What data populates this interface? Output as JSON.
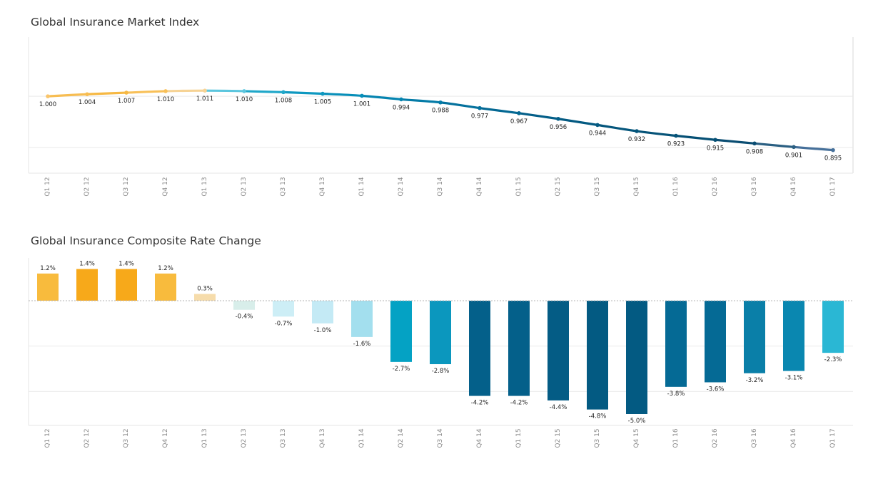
{
  "charts": {
    "line_title": "Global Insurance Market Index",
    "bar_title": "Global Insurance Composite Rate Change"
  },
  "chart_data": [
    {
      "type": "line",
      "title": "Global Insurance Market Index",
      "categories": [
        "Q1 12",
        "Q2 12",
        "Q3 12",
        "Q4 12",
        "Q1 13",
        "Q2 13",
        "Q3 13",
        "Q4 13",
        "Q1 14",
        "Q2 14",
        "Q3 14",
        "Q4 14",
        "Q1 15",
        "Q2 15",
        "Q3 15",
        "Q4 15",
        "Q1 16",
        "Q2 16",
        "Q3 16",
        "Q4 16",
        "Q1 17"
      ],
      "values": [
        1.0,
        1.004,
        1.007,
        1.01,
        1.011,
        1.01,
        1.008,
        1.005,
        1.001,
        0.994,
        0.988,
        0.977,
        0.967,
        0.956,
        0.944,
        0.932,
        0.923,
        0.915,
        0.908,
        0.901,
        0.895
      ],
      "labels": [
        "1.000",
        "1.004",
        "1.007",
        "1.010",
        "1.011",
        "1.010",
        "1.008",
        "1.005",
        "1.001",
        "0.994",
        "0.988",
        "0.977",
        "0.967",
        "0.956",
        "0.944",
        "0.932",
        "0.923",
        "0.915",
        "0.908",
        "0.901",
        "0.895"
      ],
      "ylim": [
        0.85,
        1.11
      ],
      "grid": true,
      "colors": [
        "#f9c56b",
        "#f7bd52",
        "#f6b843",
        "#f8c058",
        "#f6d395",
        "#5cc6de",
        "#1fa7c9",
        "#0e98c0",
        "#088fb9",
        "#0584b0",
        "#047ba7",
        "#04719d",
        "#046893",
        "#045f89",
        "#045a82",
        "#05567c",
        "#065378",
        "#065075",
        "#0a4d72",
        "#2a5f82",
        "#46709a"
      ]
    },
    {
      "type": "bar",
      "title": "Global Insurance Composite Rate Change",
      "categories": [
        "Q1 12",
        "Q2 12",
        "Q3 12",
        "Q4 12",
        "Q1 13",
        "Q2 13",
        "Q3 13",
        "Q4 13",
        "Q1 14",
        "Q2 14",
        "Q3 14",
        "Q4 14",
        "Q1 15",
        "Q2 15",
        "Q3 15",
        "Q4 15",
        "Q1 16",
        "Q2 16",
        "Q3 16",
        "Q4 16",
        "Q1 17"
      ],
      "values": [
        1.2,
        1.4,
        1.4,
        1.2,
        0.3,
        -0.4,
        -0.7,
        -1.0,
        -1.6,
        -2.7,
        -2.8,
        -4.2,
        -4.2,
        -4.4,
        -4.8,
        -5.0,
        -3.8,
        -3.6,
        -3.2,
        -3.1,
        -2.3
      ],
      "labels": [
        "1.2%",
        "1.4%",
        "1.4%",
        "1.2%",
        "0.3%",
        "-0.4%",
        "-0.7%",
        "-1.0%",
        "-1.6%",
        "-2.7%",
        "-2.8%",
        "-4.2%",
        "-4.2%",
        "-4.4%",
        "-4.8%",
        "-5.0%",
        "-3.8%",
        "-3.6%",
        "-3.2%",
        "-3.1%",
        "-2.3%"
      ],
      "unit": "%",
      "ylim": [
        -5.0,
        1.6
      ],
      "grid": true,
      "colors": [
        "#f8bb3d",
        "#f7a91a",
        "#f7a91a",
        "#f8bb3d",
        "#f6dcab",
        "#d8eeea",
        "#cdeef6",
        "#c4eaf5",
        "#a3dfee",
        "#04a2c4",
        "#0b97be",
        "#04608a",
        "#04608a",
        "#045c85",
        "#035a82",
        "#035a82",
        "#056a95",
        "#056a95",
        "#0a7fa8",
        "#0a87b0",
        "#2ab7d4"
      ]
    }
  ]
}
